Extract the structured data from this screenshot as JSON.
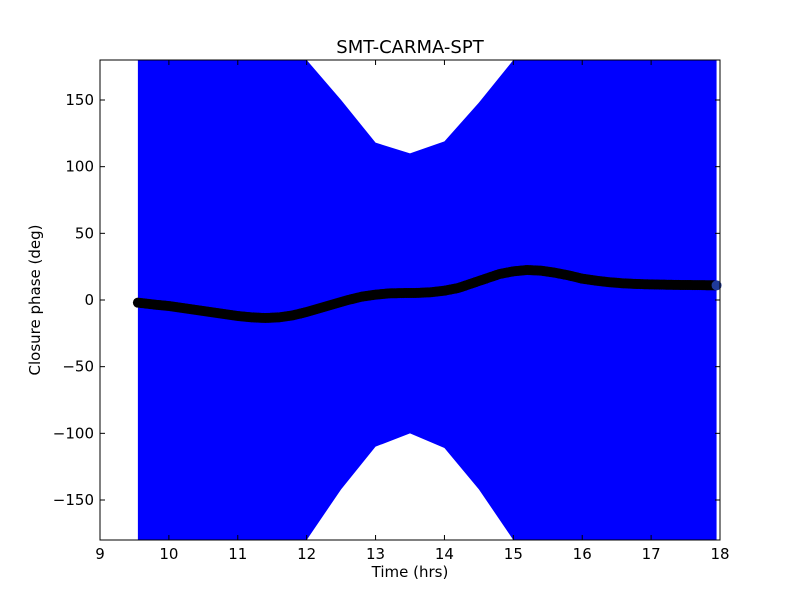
{
  "chart_data": {
    "type": "scatter",
    "title": "SMT-CARMA-SPT",
    "xlabel": "Time (hrs)",
    "ylabel": "Closure phase (deg)",
    "xlim": [
      9,
      18
    ],
    "ylim": [
      -180,
      180
    ],
    "xticks": [
      "9",
      "10",
      "11",
      "12",
      "13",
      "14",
      "15",
      "16",
      "17",
      "18"
    ],
    "yticks": [
      "−150",
      "−100",
      "−50",
      "0",
      "50",
      "100",
      "150"
    ],
    "grid": false,
    "colors": {
      "error_band": "#0000ff",
      "points": "#000000",
      "last_point": "#1f3a9a"
    },
    "error_band": {
      "x": [
        9.55,
        10.0,
        10.5,
        11.0,
        11.5,
        12.0,
        12.5,
        13.0,
        13.5,
        14.0,
        14.5,
        15.0,
        15.5,
        16.0,
        16.5,
        17.0,
        17.5,
        17.95
      ],
      "upper": [
        180,
        180,
        180,
        180,
        180,
        180,
        150,
        118,
        110,
        119,
        148,
        180,
        180,
        180,
        180,
        180,
        180,
        180
      ],
      "lower": [
        -180,
        -180,
        -180,
        -180,
        -180,
        -180,
        -142,
        -110,
        -100,
        -111,
        -142,
        -180,
        -180,
        -180,
        -180,
        -180,
        -180,
        -180
      ]
    },
    "series": [
      {
        "x": [
          9.55,
          9.8,
          10.0,
          10.2,
          10.4,
          10.6,
          10.8,
          11.0,
          11.2,
          11.4,
          11.6,
          11.8,
          12.0,
          12.2,
          12.4,
          12.6,
          12.8,
          13.0,
          13.2,
          13.4,
          13.6,
          13.8,
          14.0,
          14.2,
          14.4,
          14.6,
          14.8,
          15.0,
          15.2,
          15.4,
          15.6,
          15.8,
          16.0,
          16.2,
          16.4,
          16.6,
          16.8,
          17.0,
          17.2,
          17.4,
          17.6,
          17.8,
          17.95
        ],
        "y": [
          -2,
          -3.5,
          -4.5,
          -6,
          -7.5,
          -9,
          -10.5,
          -12,
          -13,
          -13.5,
          -13,
          -11.5,
          -9,
          -6,
          -3,
          0,
          2.5,
          4,
          5,
          5.2,
          5.3,
          5.8,
          7,
          9,
          12.5,
          16,
          19.5,
          21.5,
          22.5,
          22,
          20.5,
          18.5,
          16,
          14.5,
          13.3,
          12.5,
          12,
          11.7,
          11.5,
          11.3,
          11.2,
          11.1,
          11
        ]
      }
    ]
  }
}
